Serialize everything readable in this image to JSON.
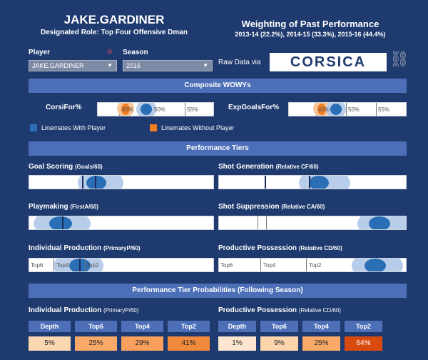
{
  "header": {
    "player_name": "JAKE.GARDINER",
    "role": "Designated Role: Top Four Offensive Dman",
    "weighting_title": "Weighting of Past Performance",
    "weighting_sub": "2013-14 (22.2%), 2014-15 (33.3%), 2015-16 (44.4%)"
  },
  "controls": {
    "player_label": "Player",
    "player_value": "JAKE.GARDINER",
    "season_label": "Season",
    "season_value": "2016",
    "raw_data": "Raw Data via",
    "logo_text": "CORSICA"
  },
  "wowy": {
    "section_title": "Composite WOWYs",
    "corsi": {
      "label": "CorsiFor%",
      "ticks": [
        "45%",
        "50%",
        "55%"
      ]
    },
    "xgf": {
      "label": "ExpGoalsFor%",
      "ticks": [
        "45%",
        "50%",
        "55%"
      ]
    },
    "legend_with": "Linemates With Player",
    "legend_without": "Linemates Without Player",
    "color_with": "#2a6fb5",
    "color_without": "#f07f23"
  },
  "tiers": {
    "section_title": "Performance Tiers",
    "goal_scoring": {
      "label": "Goal Scoring",
      "sub": "(Goals/60)"
    },
    "shot_generation": {
      "label": "Shot Generation",
      "sub": "(Relative CF/60)"
    },
    "playmaking": {
      "label": "Playmaking",
      "sub": "(FirstA/60)"
    },
    "shot_suppression": {
      "label": "Shot Suppression",
      "sub": "(Relative CA/60)"
    },
    "individual_production": {
      "label": "Individual Production",
      "sub": "(PrimaryP/60)",
      "ticks": [
        "Top6",
        "Top4",
        "Top2"
      ]
    },
    "productive_possession": {
      "label": "Productive Possession",
      "sub": "(Relative CD/60)",
      "ticks": [
        "Top6",
        "Top4",
        "Top2"
      ]
    }
  },
  "probabilities": {
    "section_title": "Performance Tier Probabilities (Following Season)",
    "individual": {
      "label": "Individual Production",
      "sub": "(PrimaryP/60)",
      "headers": [
        "Depth",
        "Top6",
        "Top4",
        "Top2"
      ],
      "values": [
        "5%",
        "25%",
        "29%",
        "41%"
      ]
    },
    "possession": {
      "label": "Productive Possession",
      "sub": "(Relative CD/60)",
      "headers": [
        "Depth",
        "Top6",
        "Top4",
        "Top2"
      ],
      "values": [
        "1%",
        "9%",
        "25%",
        "64%"
      ]
    }
  }
}
